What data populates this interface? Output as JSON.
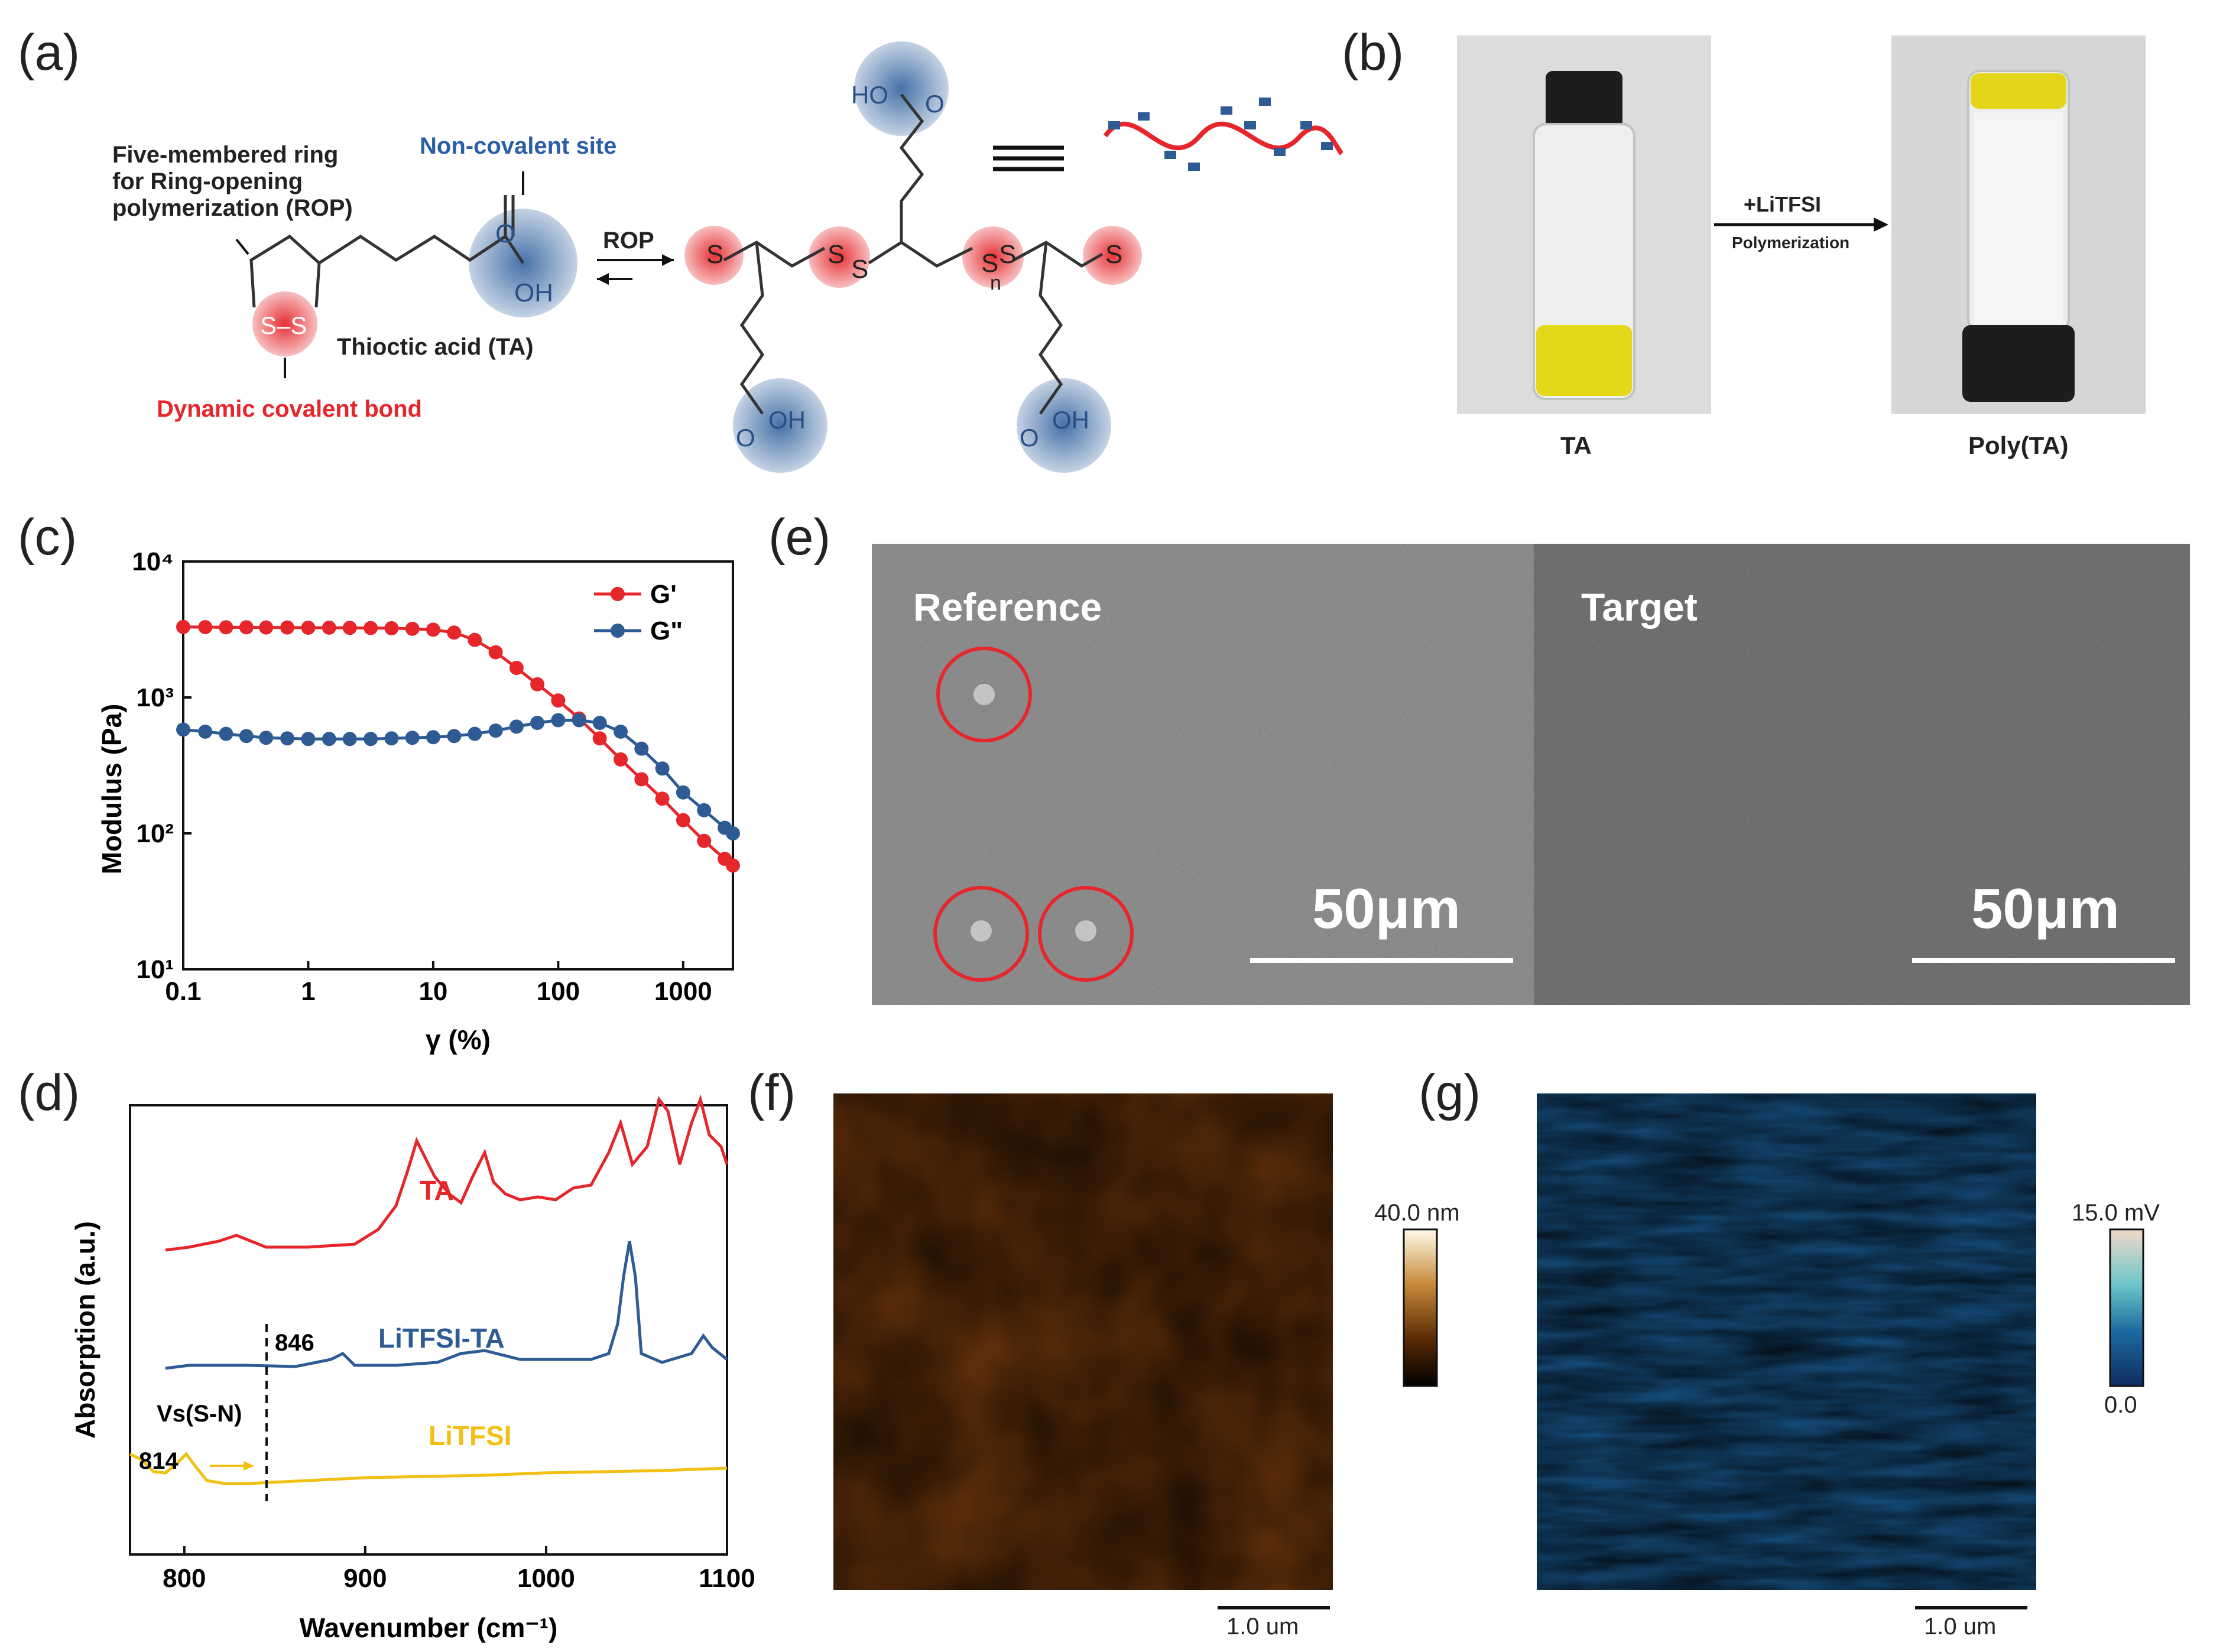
{
  "panels": {
    "a": "(a)",
    "b": "(b)",
    "c": "(c)",
    "d": "(d)",
    "e": "(e)",
    "f": "(f)",
    "g": "(g)"
  },
  "panel_a": {
    "ring_label_1": "Five-membered ring",
    "ring_label_2": "for Ring-opening",
    "ring_label_3": "polymerization (ROP)",
    "noncovalent": "Non-covalent site",
    "ta_name": "Thioctic acid (TA)",
    "dynamic": "Dynamic covalent bond",
    "rop": "ROP",
    "ss": "S–S",
    "oh": "OH",
    "o": "O",
    "ho": "HO",
    "s": "S",
    "n": "n",
    "colors": {
      "red": "#e5262b",
      "blue": "#3c6aa3",
      "navy": "#2a4f86"
    }
  },
  "panel_b": {
    "reagent": "+LiTFSI",
    "process": "Polymerization",
    "left_label": "TA",
    "right_label": "Poly(TA)"
  },
  "panel_c": {
    "chart_data": {
      "type": "line",
      "xscale": "log",
      "yscale": "log",
      "xlabel": "γ (%)",
      "ylabel": "Modulus (Pa)",
      "xlim": [
        0.1,
        2500
      ],
      "ylim": [
        10,
        10000
      ],
      "xticks": [
        "0.1",
        "1",
        "10",
        "100",
        "1000"
      ],
      "yticks": [
        "10¹",
        "10²",
        "10³",
        "10⁴"
      ],
      "legend_position": "top-right",
      "series": [
        {
          "name": "G'",
          "color": "#e5262b",
          "x": [
            0.1,
            0.15,
            0.22,
            0.32,
            0.46,
            0.68,
            1,
            1.47,
            2.15,
            3.16,
            4.64,
            6.81,
            10,
            14.7,
            21.5,
            31.6,
            46.4,
            68.1,
            100,
            147,
            215,
            316,
            464,
            681,
            1000,
            1470,
            2150,
            2500
          ],
          "y": [
            3300,
            3290,
            3280,
            3280,
            3270,
            3270,
            3260,
            3260,
            3250,
            3240,
            3230,
            3200,
            3150,
            3000,
            2650,
            2150,
            1650,
            1250,
            950,
            700,
            500,
            350,
            250,
            180,
            125,
            88,
            65,
            58
          ]
        },
        {
          "name": "G\"",
          "color": "#2f5b94",
          "x": [
            0.1,
            0.15,
            0.22,
            0.32,
            0.46,
            0.68,
            1,
            1.47,
            2.15,
            3.16,
            4.64,
            6.81,
            10,
            14.7,
            21.5,
            31.6,
            46.4,
            68.1,
            100,
            147,
            215,
            316,
            464,
            681,
            1000,
            1470,
            2150,
            2500
          ],
          "y": [
            580,
            560,
            540,
            520,
            505,
            500,
            495,
            495,
            495,
            495,
            500,
            505,
            510,
            520,
            540,
            570,
            610,
            650,
            680,
            680,
            650,
            560,
            420,
            300,
            200,
            148,
            110,
            100
          ]
        }
      ]
    }
  },
  "panel_d": {
    "chart_data": {
      "type": "line",
      "xlabel": "Wavenumber (cm⁻¹)",
      "ylabel": "Absorption (a.u.)",
      "xlim": [
        770,
        1100
      ],
      "xticks": [
        "800",
        "900",
        "1000",
        "1100"
      ],
      "series": [
        {
          "name": "TA",
          "color": "#e5262b"
        },
        {
          "name": "LiTFSI-TA",
          "color": "#2f5b94"
        },
        {
          "name": "LiTFSI",
          "color": "#f2c012"
        }
      ],
      "annotations": [
        "846",
        "814",
        "Vs(S-N)"
      ]
    }
  },
  "panel_e": {
    "left_label": "Reference",
    "right_label": "Target",
    "scale_left": "50μm",
    "scale_right": "50μm"
  },
  "panel_f": {
    "colorbar_max": "40.0 nm",
    "scalebar": "1.0 um"
  },
  "panel_g": {
    "colorbar_max": "15.0 mV",
    "colorbar_min": "0.0",
    "scalebar": "1.0 um"
  }
}
